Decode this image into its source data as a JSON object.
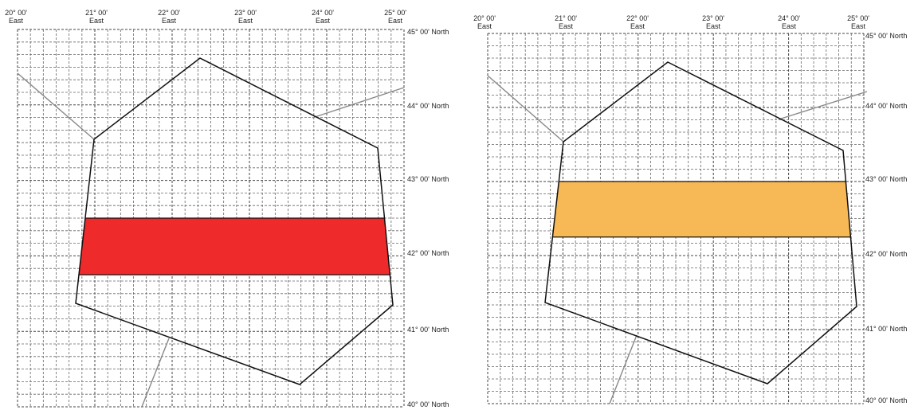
{
  "maps": [
    {
      "id": "left",
      "band_color": "#ee2a2a",
      "band_lat": [
        41.75,
        42.5
      ],
      "top_labels": [
        {
          "deg": "20° 00'",
          "dir": "East"
        },
        {
          "deg": "21° 00'",
          "dir": "East"
        },
        {
          "deg": "22° 00'",
          "dir": "East"
        },
        {
          "deg": "23° 00'",
          "dir": "East"
        },
        {
          "deg": "24° 00'",
          "dir": "East"
        },
        {
          "deg": "25° 00'",
          "dir": "East"
        }
      ],
      "right_labels": [
        "45° 00' North",
        "44° 00' North",
        "43° 00' North",
        "42° 00' North",
        "41° 00' North",
        "40° 00' North"
      ]
    },
    {
      "id": "right",
      "band_color": "#f7b955",
      "band_lat": [
        42.25,
        43.0
      ],
      "top_labels": [
        {
          "deg": "20° 00'",
          "dir": "East"
        },
        {
          "deg": "21° 00'",
          "dir": "East"
        },
        {
          "deg": "22° 00'",
          "dir": "East"
        },
        {
          "deg": "23° 00'",
          "dir": "East"
        },
        {
          "deg": "24° 00'",
          "dir": "East"
        },
        {
          "deg": "25° 00'",
          "dir": "East"
        }
      ],
      "right_labels": [
        "45° 00' North",
        "44° 00' North",
        "43° 00' North",
        "42° 00' North",
        "41° 00' North",
        "40° 00' North"
      ]
    }
  ]
}
